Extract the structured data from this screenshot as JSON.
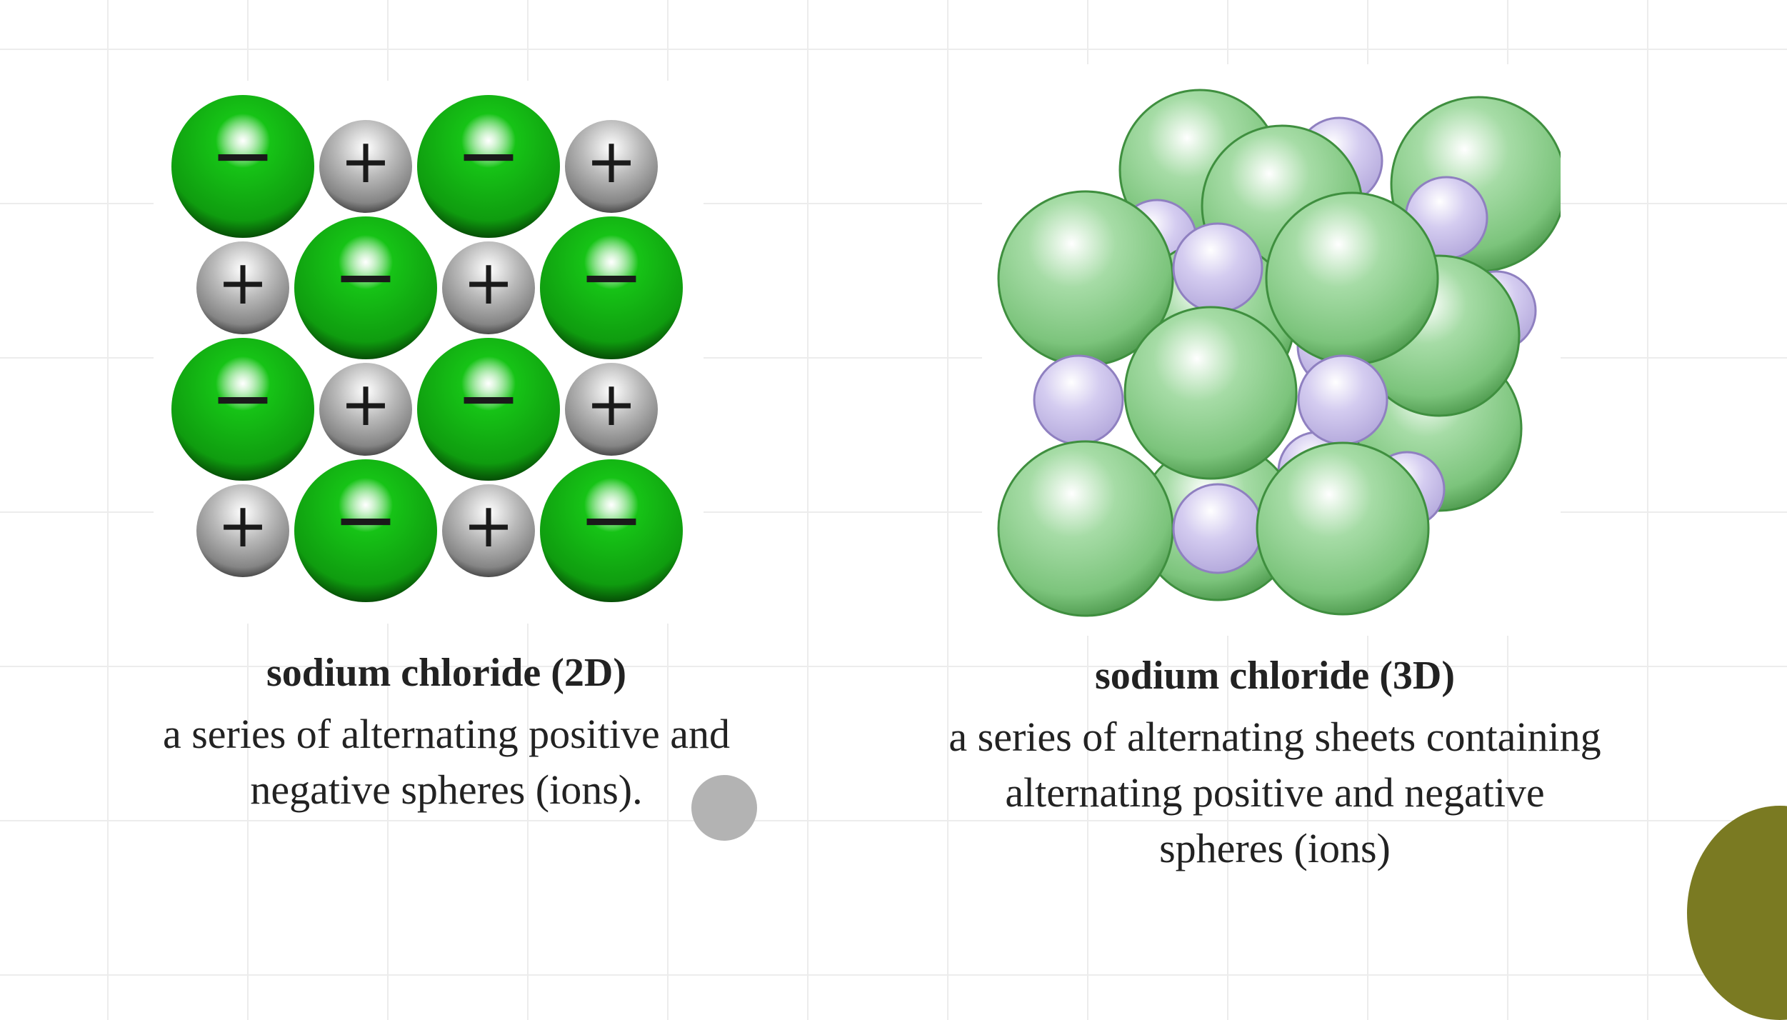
{
  "diagram_2d": {
    "title": "sodium chloride (2D)",
    "description_line1": "a series of alternating positive and",
    "description_line2": "negative spheres (ions).",
    "cation_symbol": "+",
    "anion_symbol": "−",
    "grid_rows": [
      [
        "-",
        "+",
        "-",
        "+"
      ],
      [
        "+",
        "-",
        "+",
        "-"
      ],
      [
        "-",
        "+",
        "-",
        "+"
      ],
      [
        "+",
        "-",
        "+",
        "-"
      ]
    ],
    "anion_color": "#16c316",
    "cation_color": "#b9b9b9"
  },
  "diagram_3d": {
    "title": "sodium chloride (3D)",
    "description_line1": "a series of alternating sheets containing",
    "description_line2": "alternating positive and negative",
    "description_line3": "spheres (ions)",
    "large_sphere_color": "#7cc47c",
    "small_sphere_color": "#b4a9dc"
  },
  "ui": {
    "pointer_color": "#b3b3b3",
    "corner_accent_color": "#7a7a22"
  }
}
